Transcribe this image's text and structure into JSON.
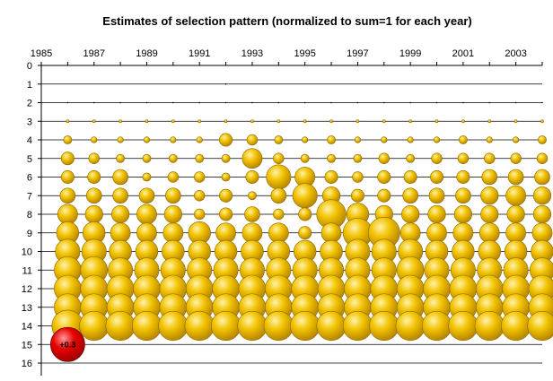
{
  "chart_data": {
    "type": "bubble",
    "title": "Estimates of selection pattern (normalized to sum=1 for each year)",
    "x_range": [
      1985,
      2004
    ],
    "y_range": [
      0,
      16
    ],
    "y_reversed": true,
    "x_ticks": [
      1985,
      1987,
      1989,
      1991,
      1993,
      1995,
      1997,
      1999,
      2001,
      2003
    ],
    "y_ticks": [
      0,
      1,
      2,
      3,
      4,
      5,
      6,
      7,
      8,
      9,
      10,
      11,
      12,
      13,
      14,
      15,
      16
    ],
    "horizontal_gridlines": true,
    "years": [
      1986,
      1987,
      1988,
      1989,
      1990,
      1991,
      1992,
      1993,
      1994,
      1995,
      1996,
      1997,
      1998,
      1999,
      2000,
      2001,
      2002,
      2003,
      2004
    ],
    "ages": [
      1,
      2,
      3,
      4,
      5,
      6,
      7,
      8,
      9,
      10,
      11,
      12,
      13,
      14
    ],
    "bubble_size_ranks": [
      [
        0,
        0,
        0,
        0,
        0,
        0,
        1,
        0,
        0,
        0,
        0,
        0,
        0,
        0,
        0,
        0,
        0,
        0,
        0
      ],
      [
        1,
        1,
        1,
        1,
        1,
        1,
        1,
        1,
        1,
        1,
        1,
        1,
        1,
        1,
        1,
        1,
        1,
        1,
        1
      ],
      [
        2,
        2,
        2,
        2,
        2,
        2,
        2,
        2,
        2,
        2,
        2,
        2,
        2,
        2,
        2,
        2,
        2,
        2,
        2
      ],
      [
        4,
        3,
        3,
        3,
        3,
        3,
        6,
        5,
        4,
        3,
        4,
        3,
        3,
        3,
        3,
        4,
        3,
        3,
        4
      ],
      [
        6,
        5,
        4,
        4,
        4,
        4,
        4,
        9,
        5,
        4,
        4,
        4,
        5,
        4,
        5,
        5,
        5,
        5,
        5
      ],
      [
        6,
        6,
        7,
        4,
        5,
        5,
        4,
        6,
        11,
        9,
        6,
        5,
        6,
        6,
        6,
        6,
        7,
        7,
        7
      ],
      [
        7,
        7,
        7,
        7,
        7,
        5,
        6,
        4,
        7,
        11,
        8,
        6,
        6,
        7,
        7,
        7,
        8,
        9,
        8
      ],
      [
        9,
        8,
        8,
        9,
        8,
        5,
        6,
        7,
        5,
        6,
        13,
        10,
        8,
        8,
        8,
        8,
        8,
        8,
        8
      ],
      [
        10,
        10,
        9,
        9,
        9,
        10,
        9,
        9,
        9,
        6,
        9,
        13,
        14,
        9,
        9,
        9,
        9,
        9,
        9
      ],
      [
        11,
        11,
        10,
        10,
        10,
        10,
        10,
        10,
        10,
        10,
        10,
        11,
        11,
        11,
        10,
        10,
        10,
        10,
        10
      ],
      [
        12,
        12,
        11,
        11,
        11,
        11,
        11,
        11,
        11,
        11,
        11,
        11,
        11,
        12,
        11,
        11,
        11,
        11,
        11
      ],
      [
        12,
        12,
        12,
        12,
        12,
        12,
        12,
        12,
        12,
        12,
        12,
        12,
        12,
        12,
        12,
        12,
        12,
        12,
        12
      ],
      [
        12,
        12,
        12,
        12,
        12,
        12,
        12,
        12,
        12,
        12,
        12,
        12,
        12,
        12,
        12,
        12,
        12,
        12,
        12
      ],
      [
        14,
        13,
        13,
        13,
        13,
        13,
        13,
        13,
        13,
        13,
        13,
        13,
        13,
        13,
        13,
        13,
        13,
        13,
        13
      ]
    ],
    "reference_bubble": {
      "x": 1986,
      "y": 15,
      "label": "+0.3",
      "color": "#e00000"
    },
    "bubble_color": "#f0c000",
    "bubble_stroke": "#8a6a00"
  }
}
